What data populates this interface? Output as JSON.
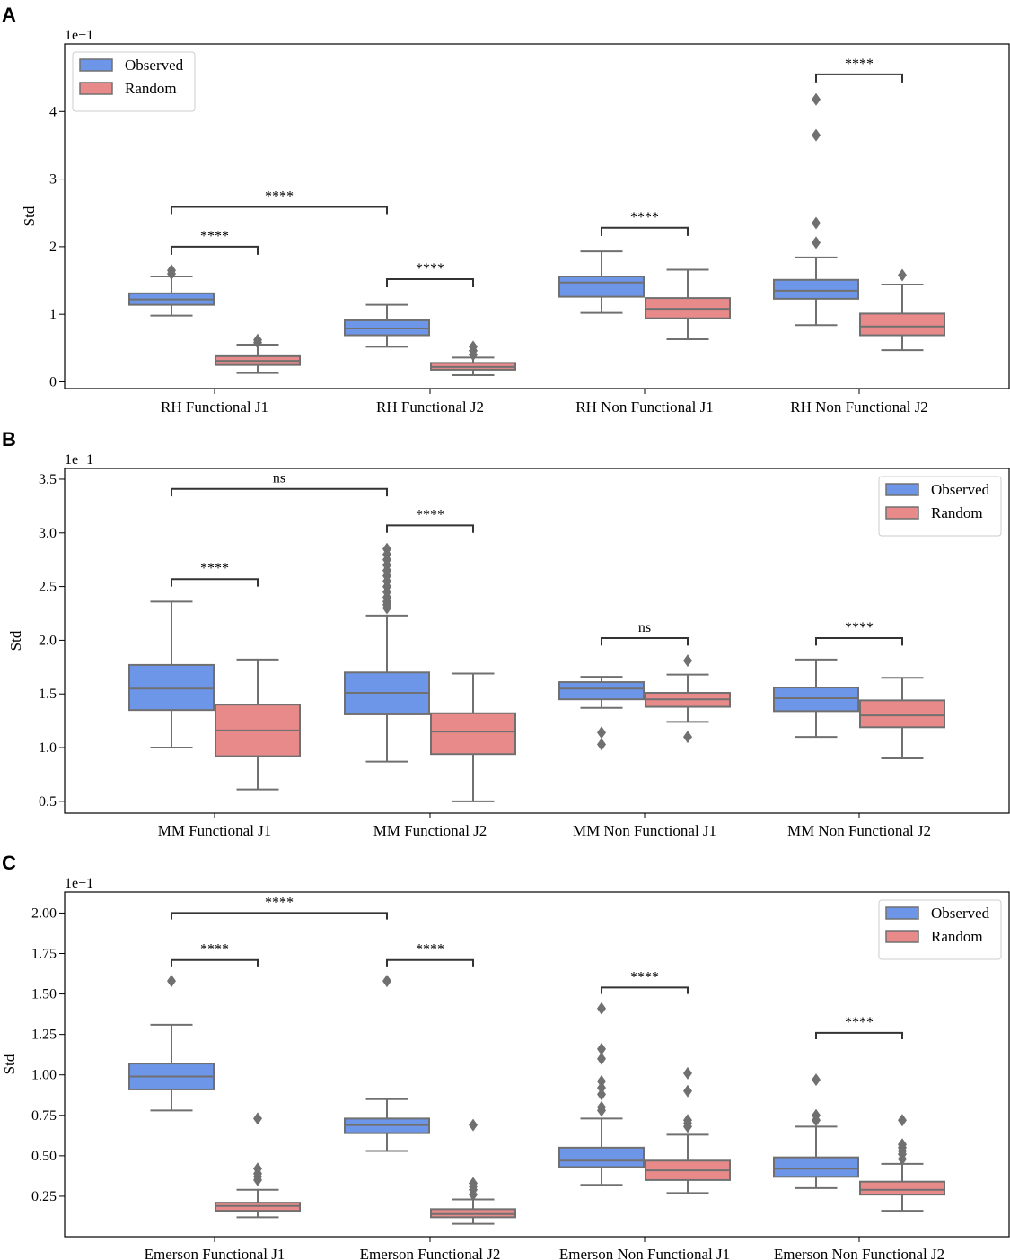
{
  "colors": {
    "observed": "#6d96e8",
    "random": "#e98a8a",
    "line": "#707070",
    "frame": "#000000",
    "bracket": "#333333"
  },
  "chart_data": [
    {
      "type": "box",
      "letter": "A",
      "ylabel": "Std",
      "sci": "1e−1",
      "ylim": [
        -0.1,
        5.0
      ],
      "ticks": [
        0,
        1,
        2,
        3,
        4
      ],
      "tick_labels": [
        "0",
        "1",
        "2",
        "3",
        "4"
      ],
      "legend": {
        "position": "top-left",
        "entries": [
          "Observed",
          "Random"
        ]
      },
      "categories": [
        "RH Functional J1",
        "RH Functional J2",
        "RH Non Functional J1",
        "RH Non Functional J2"
      ],
      "series": [
        {
          "name": "Observed",
          "boxes": [
            {
              "wl": 0.98,
              "q1": 1.14,
              "med": 1.22,
              "q3": 1.31,
              "wh": 1.56,
              "out": [
                1.6,
                1.65
              ]
            },
            {
              "wl": 0.52,
              "q1": 0.69,
              "med": 0.79,
              "q3": 0.91,
              "wh": 1.14,
              "out": []
            },
            {
              "wl": 1.02,
              "q1": 1.26,
              "med": 1.47,
              "q3": 1.56,
              "wh": 1.93,
              "out": []
            },
            {
              "wl": 0.84,
              "q1": 1.23,
              "med": 1.35,
              "q3": 1.51,
              "wh": 1.84,
              "out": [
                2.06,
                2.35,
                3.65,
                4.18
              ]
            }
          ]
        },
        {
          "name": "Random",
          "boxes": [
            {
              "wl": 0.13,
              "q1": 0.25,
              "med": 0.31,
              "q3": 0.38,
              "wh": 0.55,
              "out": [
                0.58,
                0.62
              ]
            },
            {
              "wl": 0.1,
              "q1": 0.18,
              "med": 0.22,
              "q3": 0.28,
              "wh": 0.36,
              "out": [
                0.4,
                0.46,
                0.52
              ]
            },
            {
              "wl": 0.63,
              "q1": 0.94,
              "med": 1.08,
              "q3": 1.24,
              "wh": 1.66,
              "out": []
            },
            {
              "wl": 0.47,
              "q1": 0.69,
              "med": 0.82,
              "q3": 1.01,
              "wh": 1.44,
              "out": [
                1.58
              ]
            }
          ]
        }
      ],
      "brackets": [
        {
          "from": [
            0,
            0
          ],
          "to": [
            0,
            1
          ],
          "y": 2.0,
          "drop": 0.12,
          "label": "****"
        },
        {
          "from": [
            0,
            0
          ],
          "to": [
            1,
            0
          ],
          "y": 2.59,
          "drop": 0.12,
          "label": "****"
        },
        {
          "from": [
            1,
            0
          ],
          "to": [
            1,
            1
          ],
          "y": 1.52,
          "drop": 0.12,
          "label": "****"
        },
        {
          "from": [
            2,
            0
          ],
          "to": [
            2,
            1
          ],
          "y": 2.28,
          "drop": 0.12,
          "label": "****"
        },
        {
          "from": [
            3,
            0
          ],
          "to": [
            3,
            1
          ],
          "y": 4.55,
          "drop": 0.12,
          "label": "****"
        }
      ]
    },
    {
      "type": "box",
      "letter": "B",
      "ylabel": "Std",
      "sci": "1e−1",
      "ylim": [
        0.39,
        3.6
      ],
      "ticks": [
        0.5,
        1.0,
        1.5,
        2.0,
        2.5,
        3.0,
        3.5
      ],
      "tick_labels": [
        "0.5",
        "1.0",
        "1.5",
        "2.0",
        "2.5",
        "3.0",
        "3.5"
      ],
      "legend": {
        "position": "top-right",
        "entries": [
          "Observed",
          "Random"
        ]
      },
      "categories": [
        "MM Functional J1",
        "MM Functional J2",
        "MM Non Functional J1",
        "MM Non Functional J2"
      ],
      "series": [
        {
          "name": "Observed",
          "boxes": [
            {
              "wl": 1.0,
              "q1": 1.35,
              "med": 1.55,
              "q3": 1.77,
              "wh": 2.36,
              "out": []
            },
            {
              "wl": 0.87,
              "q1": 1.31,
              "med": 1.51,
              "q3": 1.7,
              "wh": 2.23,
              "out": [
                2.3,
                2.33,
                2.36,
                2.4,
                2.45,
                2.5,
                2.55,
                2.6,
                2.65,
                2.7,
                2.75,
                2.8,
                2.85
              ]
            },
            {
              "wl": 1.37,
              "q1": 1.45,
              "med": 1.55,
              "q3": 1.61,
              "wh": 1.66,
              "out": [
                1.03,
                1.14
              ]
            },
            {
              "wl": 1.1,
              "q1": 1.34,
              "med": 1.46,
              "q3": 1.56,
              "wh": 1.82,
              "out": []
            }
          ]
        },
        {
          "name": "Random",
          "boxes": [
            {
              "wl": 0.61,
              "q1": 0.92,
              "med": 1.16,
              "q3": 1.4,
              "wh": 1.82,
              "out": []
            },
            {
              "wl": 0.5,
              "q1": 0.94,
              "med": 1.15,
              "q3": 1.32,
              "wh": 1.69,
              "out": []
            },
            {
              "wl": 1.24,
              "q1": 1.38,
              "med": 1.45,
              "q3": 1.51,
              "wh": 1.68,
              "out": [
                1.1,
                1.81
              ]
            },
            {
              "wl": 0.9,
              "q1": 1.19,
              "med": 1.3,
              "q3": 1.44,
              "wh": 1.65,
              "out": []
            }
          ]
        }
      ],
      "brackets": [
        {
          "from": [
            0,
            0
          ],
          "to": [
            0,
            1
          ],
          "y": 2.57,
          "drop": 0.07,
          "label": "****"
        },
        {
          "from": [
            0,
            0
          ],
          "to": [
            1,
            0
          ],
          "y": 3.41,
          "drop": 0.07,
          "label": "ns"
        },
        {
          "from": [
            1,
            0
          ],
          "to": [
            1,
            1
          ],
          "y": 3.07,
          "drop": 0.07,
          "label": "****"
        },
        {
          "from": [
            2,
            0
          ],
          "to": [
            2,
            1
          ],
          "y": 2.02,
          "drop": 0.07,
          "label": "ns"
        },
        {
          "from": [
            3,
            0
          ],
          "to": [
            3,
            1
          ],
          "y": 2.02,
          "drop": 0.07,
          "label": "****"
        }
      ]
    },
    {
      "type": "box",
      "letter": "C",
      "ylabel": "Std",
      "sci": "1e−1",
      "ylim": [
        0.0,
        2.13
      ],
      "ticks": [
        0.25,
        0.5,
        0.75,
        1.0,
        1.25,
        1.5,
        1.75,
        2.0
      ],
      "tick_labels": [
        "0.25",
        "0.50",
        "0.75",
        "1.00",
        "1.25",
        "1.50",
        "1.75",
        "2.00"
      ],
      "legend": {
        "position": "top-right",
        "entries": [
          "Observed",
          "Random"
        ]
      },
      "categories": [
        "Emerson Functional J1",
        "Emerson Functional J2",
        "Emerson Non Functional J1",
        "Emerson Non Functional J2"
      ],
      "series": [
        {
          "name": "Observed",
          "boxes": [
            {
              "wl": 0.78,
              "q1": 0.91,
              "med": 0.99,
              "q3": 1.07,
              "wh": 1.31,
              "out": [
                1.58
              ]
            },
            {
              "wl": 0.53,
              "q1": 0.64,
              "med": 0.69,
              "q3": 0.73,
              "wh": 0.85,
              "out": [
                1.58
              ]
            },
            {
              "wl": 0.32,
              "q1": 0.43,
              "med": 0.47,
              "q3": 0.55,
              "wh": 0.73,
              "out": [
                0.78,
                0.8,
                0.88,
                0.92,
                0.96,
                1.1,
                1.16,
                1.41
              ]
            },
            {
              "wl": 0.3,
              "q1": 0.37,
              "med": 0.42,
              "q3": 0.49,
              "wh": 0.68,
              "out": [
                0.72,
                0.75,
                0.97
              ]
            }
          ]
        },
        {
          "name": "Random",
          "boxes": [
            {
              "wl": 0.12,
              "q1": 0.16,
              "med": 0.19,
              "q3": 0.21,
              "wh": 0.29,
              "out": [
                0.35,
                0.37,
                0.39,
                0.42,
                0.73
              ]
            },
            {
              "wl": 0.08,
              "q1": 0.12,
              "med": 0.14,
              "q3": 0.17,
              "wh": 0.23,
              "out": [
                0.26,
                0.29,
                0.31,
                0.33,
                0.69
              ]
            },
            {
              "wl": 0.27,
              "q1": 0.35,
              "med": 0.41,
              "q3": 0.47,
              "wh": 0.63,
              "out": [
                0.68,
                0.7,
                0.72,
                0.9,
                1.01
              ]
            },
            {
              "wl": 0.16,
              "q1": 0.26,
              "med": 0.29,
              "q3": 0.34,
              "wh": 0.45,
              "out": [
                0.48,
                0.51,
                0.53,
                0.55,
                0.57,
                0.72
              ]
            }
          ]
        }
      ],
      "brackets": [
        {
          "from": [
            0,
            0
          ],
          "to": [
            0,
            1
          ],
          "y": 1.71,
          "drop": 0.04,
          "label": "****"
        },
        {
          "from": [
            0,
            0
          ],
          "to": [
            1,
            0
          ],
          "y": 2.0,
          "drop": 0.04,
          "label": "****"
        },
        {
          "from": [
            1,
            0
          ],
          "to": [
            1,
            1
          ],
          "y": 1.71,
          "drop": 0.04,
          "label": "****"
        },
        {
          "from": [
            2,
            0
          ],
          "to": [
            2,
            1
          ],
          "y": 1.54,
          "drop": 0.04,
          "label": "****"
        },
        {
          "from": [
            3,
            0
          ],
          "to": [
            3,
            1
          ],
          "y": 1.26,
          "drop": 0.04,
          "label": "****"
        }
      ]
    }
  ]
}
